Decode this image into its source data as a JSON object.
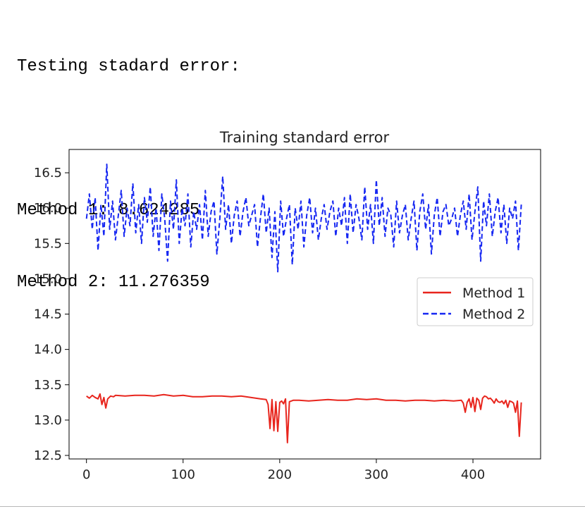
{
  "output": {
    "heading": "Testing stadard error:",
    "method1_line": "Method 1: 8.624285",
    "method2_line": "Method 2: 11.276359"
  },
  "chart_data": {
    "type": "line",
    "title": "Training standard error",
    "xlabel": "",
    "ylabel": "",
    "xlim": [
      -18,
      470
    ],
    "ylim": [
      12.45,
      16.83
    ],
    "xticks": [
      0,
      100,
      200,
      300,
      400
    ],
    "yticks": [
      12.5,
      13.0,
      13.5,
      14.0,
      14.5,
      15.0,
      15.5,
      16.0,
      16.5
    ],
    "ytick_labels": [
      "12.5",
      "13.0",
      "13.5",
      "14.0",
      "14.5",
      "15.0",
      "15.5",
      "16.0",
      "16.5"
    ],
    "grid": false,
    "legend_position": "center-right",
    "series": [
      {
        "name": "Method 1",
        "color": "#e8251d",
        "style": "solid",
        "x": [
          0,
          3,
          6,
          9,
          12,
          14,
          16,
          18,
          20,
          22,
          25,
          28,
          30,
          40,
          50,
          60,
          70,
          80,
          90,
          100,
          110,
          120,
          130,
          140,
          150,
          160,
          170,
          180,
          186,
          188,
          190,
          192,
          194,
          196,
          198,
          200,
          202,
          204,
          206,
          208,
          210,
          214,
          220,
          230,
          240,
          250,
          260,
          270,
          280,
          290,
          300,
          310,
          320,
          330,
          340,
          350,
          360,
          370,
          380,
          388,
          390,
          392,
          394,
          396,
          398,
          400,
          402,
          404,
          406,
          408,
          410,
          412,
          414,
          416,
          418,
          420,
          422,
          424,
          426,
          428,
          430,
          432,
          434,
          436,
          438,
          440,
          442,
          444,
          446,
          448,
          450
        ],
        "y": [
          13.34,
          13.31,
          13.35,
          13.32,
          13.3,
          13.37,
          13.22,
          13.32,
          13.17,
          13.3,
          13.34,
          13.33,
          13.35,
          13.34,
          13.35,
          13.35,
          13.34,
          13.36,
          13.34,
          13.35,
          13.33,
          13.33,
          13.34,
          13.34,
          13.33,
          13.34,
          13.32,
          13.3,
          13.29,
          13.22,
          12.88,
          13.29,
          12.85,
          13.26,
          12.84,
          13.25,
          13.27,
          13.23,
          13.3,
          12.68,
          13.26,
          13.28,
          13.28,
          13.27,
          13.28,
          13.29,
          13.28,
          13.28,
          13.3,
          13.29,
          13.3,
          13.28,
          13.28,
          13.27,
          13.28,
          13.28,
          13.27,
          13.28,
          13.27,
          13.28,
          13.24,
          13.11,
          13.25,
          13.3,
          13.18,
          13.32,
          13.12,
          13.31,
          13.28,
          13.15,
          13.31,
          13.34,
          13.33,
          13.3,
          13.31,
          13.28,
          13.24,
          13.3,
          13.26,
          13.25,
          13.27,
          13.23,
          13.28,
          13.18,
          13.27,
          13.26,
          13.24,
          13.11,
          13.27,
          12.77,
          13.25
        ]
      },
      {
        "name": "Method 2",
        "color": "#1627f2",
        "style": "dashed",
        "x": [
          0,
          3,
          6,
          9,
          12,
          15,
          18,
          21,
          24,
          27,
          30,
          33,
          36,
          39,
          42,
          45,
          48,
          51,
          54,
          57,
          60,
          63,
          66,
          69,
          72,
          75,
          78,
          81,
          84,
          87,
          90,
          93,
          96,
          99,
          102,
          105,
          108,
          111,
          114,
          117,
          120,
          123,
          126,
          129,
          132,
          135,
          138,
          141,
          144,
          147,
          150,
          153,
          156,
          159,
          162,
          165,
          168,
          171,
          174,
          177,
          180,
          183,
          186,
          189,
          192,
          195,
          198,
          201,
          204,
          207,
          210,
          213,
          216,
          219,
          222,
          225,
          228,
          231,
          234,
          237,
          240,
          243,
          246,
          249,
          252,
          255,
          258,
          261,
          264,
          267,
          270,
          273,
          276,
          279,
          282,
          285,
          288,
          291,
          294,
          297,
          300,
          303,
          306,
          309,
          312,
          315,
          318,
          321,
          324,
          327,
          330,
          333,
          336,
          339,
          342,
          345,
          348,
          351,
          354,
          357,
          360,
          363,
          366,
          369,
          372,
          375,
          378,
          381,
          384,
          387,
          390,
          393,
          396,
          399,
          402,
          405,
          408,
          411,
          414,
          417,
          420,
          423,
          426,
          429,
          432,
          435,
          438,
          441,
          444,
          447,
          450
        ],
        "y": [
          15.85,
          16.2,
          15.7,
          16.15,
          15.4,
          16.05,
          15.6,
          16.62,
          15.7,
          16.1,
          15.55,
          15.9,
          16.25,
          15.6,
          16.0,
          15.75,
          16.35,
          15.65,
          16.05,
          15.5,
          16.15,
          15.8,
          16.3,
          15.6,
          16.0,
          15.4,
          16.2,
          15.85,
          15.25,
          16.1,
          15.7,
          16.4,
          15.5,
          16.0,
          15.75,
          16.2,
          15.45,
          15.95,
          15.7,
          16.05,
          15.55,
          16.25,
          15.6,
          15.95,
          16.1,
          15.35,
          15.85,
          16.45,
          15.7,
          16.05,
          15.5,
          15.9,
          16.1,
          15.6,
          15.95,
          16.15,
          15.75,
          15.9,
          16.05,
          15.45,
          15.85,
          16.2,
          15.65,
          16.0,
          15.3,
          15.95,
          15.1,
          16.1,
          15.6,
          15.85,
          16.05,
          15.2,
          16.0,
          15.7,
          16.1,
          15.45,
          15.9,
          16.15,
          15.65,
          16.0,
          15.55,
          15.85,
          16.05,
          15.7,
          15.95,
          16.1,
          15.6,
          16.0,
          15.75,
          16.15,
          15.5,
          16.2,
          15.65,
          16.05,
          15.85,
          15.55,
          16.3,
          15.7,
          16.05,
          15.5,
          16.4,
          15.75,
          16.15,
          15.6,
          16.0,
          15.9,
          15.45,
          16.1,
          15.65,
          15.9,
          16.05,
          15.55,
          15.85,
          16.1,
          15.4,
          15.95,
          16.2,
          15.7,
          16.05,
          15.35,
          15.9,
          16.15,
          15.6,
          15.95,
          16.05,
          15.75,
          15.85,
          16.0,
          15.6,
          15.9,
          16.1,
          15.7,
          16.2,
          15.55,
          15.95,
          16.3,
          15.25,
          16.1,
          15.75,
          16.2,
          15.6,
          15.95,
          16.15,
          15.65,
          16.05,
          15.5,
          16.0,
          15.85,
          16.1,
          15.4,
          16.05
        ]
      }
    ]
  }
}
